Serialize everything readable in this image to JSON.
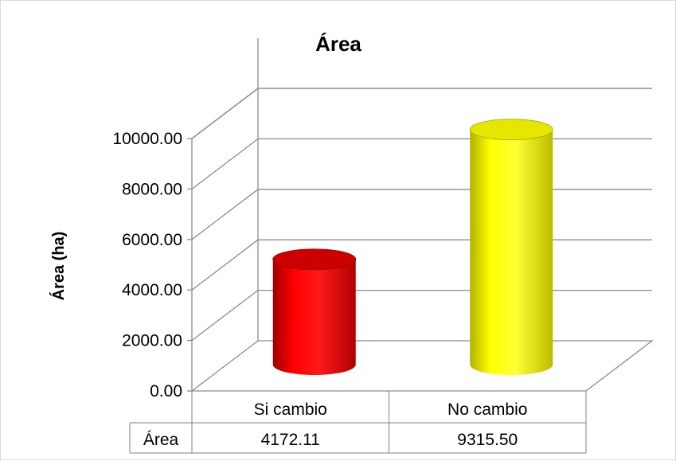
{
  "chart_data": {
    "type": "bar",
    "title": "Área",
    "ylabel": "Área (ha)",
    "xlabel": "",
    "categories": [
      "Si cambio",
      "No cambio"
    ],
    "series": [
      {
        "name": "Área",
        "values": [
          4172.11,
          9315.5
        ],
        "colors": [
          "#ff0000",
          "#ffff00"
        ]
      }
    ],
    "value_labels": [
      "4172.11",
      "9315.50"
    ],
    "ylim": [
      0,
      10000
    ],
    "yticks": [
      0,
      2000,
      4000,
      6000,
      8000,
      10000
    ],
    "ytick_labels": [
      "0.00",
      "2000.00",
      "4000.00",
      "6000.00",
      "8000.00",
      "10000.00"
    ],
    "style": "3d-cylinder",
    "grid": true,
    "legend": "none",
    "data_table": true
  }
}
